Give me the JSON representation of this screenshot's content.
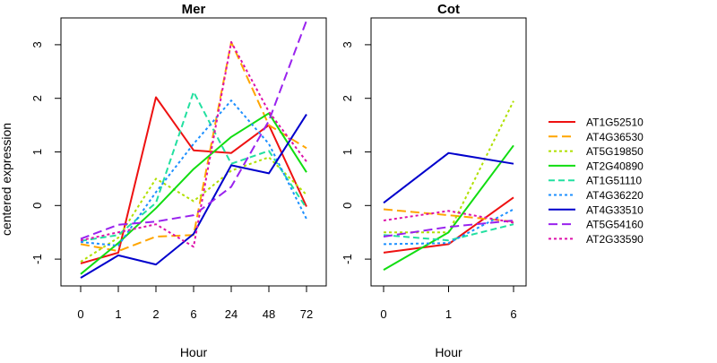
{
  "figure": {
    "ylabel": "centered expression"
  },
  "colors": {
    "AT1G52510": "#ee1111",
    "AT4G36530": "#ffa500",
    "AT5G19850": "#b0e000",
    "AT2G40890": "#11dd11",
    "AT1G51110": "#22e0a0",
    "AT4G36220": "#1e90ff",
    "AT4G33510": "#0000cc",
    "AT5G54160": "#9922ee",
    "AT2G33590": "#dd11aa"
  },
  "chart_data": [
    {
      "type": "line",
      "title": "Mer",
      "xlabel": "Hour",
      "ylabel": "centered expression",
      "categories": [
        "0",
        "1",
        "2",
        "6",
        "24",
        "48",
        "72"
      ],
      "ylim": [
        -1.5,
        3.5
      ],
      "yticks": [
        -1,
        0,
        1,
        2,
        3
      ],
      "series": [
        {
          "name": "AT1G52510",
          "values": [
            -1.08,
            -0.88,
            2.02,
            1.03,
            0.98,
            1.5,
            -0.02
          ]
        },
        {
          "name": "AT4G36530",
          "values": [
            -0.72,
            -0.85,
            -0.58,
            -0.55,
            3.05,
            1.5,
            1.07
          ]
        },
        {
          "name": "AT5G19850",
          "values": [
            -1.05,
            -0.6,
            0.5,
            0.08,
            0.65,
            0.9,
            0.2
          ]
        },
        {
          "name": "AT2G40890",
          "values": [
            -1.28,
            -0.7,
            -0.05,
            0.68,
            1.28,
            1.72,
            0.62
          ]
        },
        {
          "name": "AT1G51110",
          "values": [
            -0.66,
            -0.55,
            0.05,
            2.12,
            0.78,
            1.02,
            -0.05
          ]
        },
        {
          "name": "AT4G36220",
          "values": [
            -0.68,
            -0.75,
            0.25,
            1.15,
            1.96,
            1.15,
            -0.25
          ]
        },
        {
          "name": "AT4G33510",
          "values": [
            -1.35,
            -0.93,
            -1.1,
            -0.53,
            0.75,
            0.6,
            1.7
          ]
        },
        {
          "name": "AT5G54160",
          "values": [
            -0.62,
            -0.36,
            -0.3,
            -0.18,
            0.35,
            1.58,
            3.45
          ]
        },
        {
          "name": "AT2G33590",
          "values": [
            -0.65,
            -0.5,
            -0.35,
            -0.77,
            3.05,
            1.75,
            0.82
          ]
        }
      ]
    },
    {
      "type": "line",
      "title": "Cot",
      "xlabel": "Hour",
      "categories": [
        "0",
        "1",
        "6"
      ],
      "ylim": [
        -1.5,
        3.5
      ],
      "yticks": [
        -1,
        0,
        1,
        2,
        3
      ],
      "series": [
        {
          "name": "AT1G52510",
          "values": [
            -0.88,
            -0.72,
            0.15
          ]
        },
        {
          "name": "AT4G36530",
          "values": [
            -0.07,
            -0.18,
            -0.3
          ]
        },
        {
          "name": "AT5G19850",
          "values": [
            -0.5,
            -0.5,
            1.95
          ]
        },
        {
          "name": "AT2G40890",
          "values": [
            -1.2,
            -0.5,
            1.12
          ]
        },
        {
          "name": "AT1G51110",
          "values": [
            -0.55,
            -0.65,
            -0.35
          ]
        },
        {
          "name": "AT4G36220",
          "values": [
            -0.72,
            -0.7,
            -0.07
          ]
        },
        {
          "name": "AT4G33510",
          "values": [
            0.05,
            0.98,
            0.78
          ]
        },
        {
          "name": "AT5G54160",
          "values": [
            -0.58,
            -0.4,
            -0.28
          ]
        },
        {
          "name": "AT2G33590",
          "values": [
            -0.28,
            -0.1,
            -0.32
          ]
        }
      ]
    }
  ],
  "legend": {
    "position": "right",
    "entries": [
      {
        "name": "AT1G52510",
        "dash": "solid"
      },
      {
        "name": "AT4G36530",
        "dash": "longdash"
      },
      {
        "name": "AT5G19850",
        "dash": "dotted"
      },
      {
        "name": "AT2G40890",
        "dash": "solid"
      },
      {
        "name": "AT1G51110",
        "dash": "dashed"
      },
      {
        "name": "AT4G36220",
        "dash": "dotted"
      },
      {
        "name": "AT4G33510",
        "dash": "solid"
      },
      {
        "name": "AT5G54160",
        "dash": "longdash"
      },
      {
        "name": "AT2G33590",
        "dash": "dotted"
      }
    ]
  }
}
